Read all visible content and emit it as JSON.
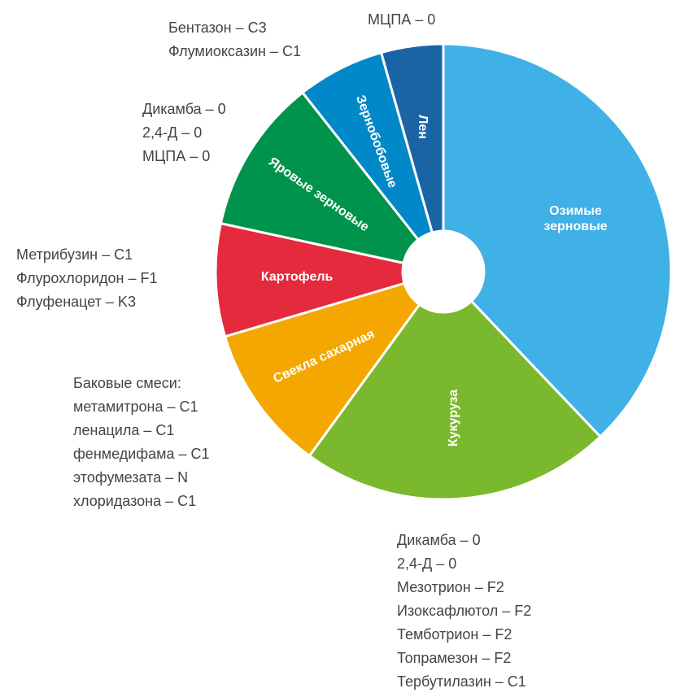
{
  "chart_data": {
    "type": "donut",
    "categories": [
      "Озимые зерновые",
      "Кукуруза",
      "Свекла сахарная",
      "Картофель",
      "Яровые зерновые",
      "Зернобобовые",
      "Лен"
    ],
    "values": [
      37.9,
      22.1,
      10.4,
      8,
      11,
      6.2,
      4.4
    ],
    "colors": [
      "#3fb1e6",
      "#7ab92d",
      "#f4a700",
      "#e42a3c",
      "#00934b",
      "#0088c8",
      "#1a63a5"
    ],
    "annotations": [
      {
        "lines": [
          "МЦПА – 0"
        ]
      },
      {
        "lines": [
          "Бентазон – C3",
          "Флумиоксазин – C1"
        ]
      },
      {
        "lines": [
          "Дикамба – 0",
          "2,4-Д – 0",
          "МЦПА – 0"
        ]
      },
      {
        "lines": [
          "Метрибузин – C1",
          "Флурохлоридон – F1",
          "Флуфенацет – K3"
        ]
      },
      {
        "lines": [
          "Баковые смеси:",
          "метамитрона – C1",
          "ленацила – C1",
          "фенмедифама – C1",
          "этофумезата – N",
          "хлоридазона – C1"
        ]
      },
      {
        "lines": [
          "Дикамба – 0",
          "2,4-Д – 0",
          "Мезотрион – F2",
          "Изоксафлютол – F2",
          "Темботрион – F2",
          "Топрамезон – F2",
          "Тербутилазин – C1"
        ]
      }
    ]
  }
}
